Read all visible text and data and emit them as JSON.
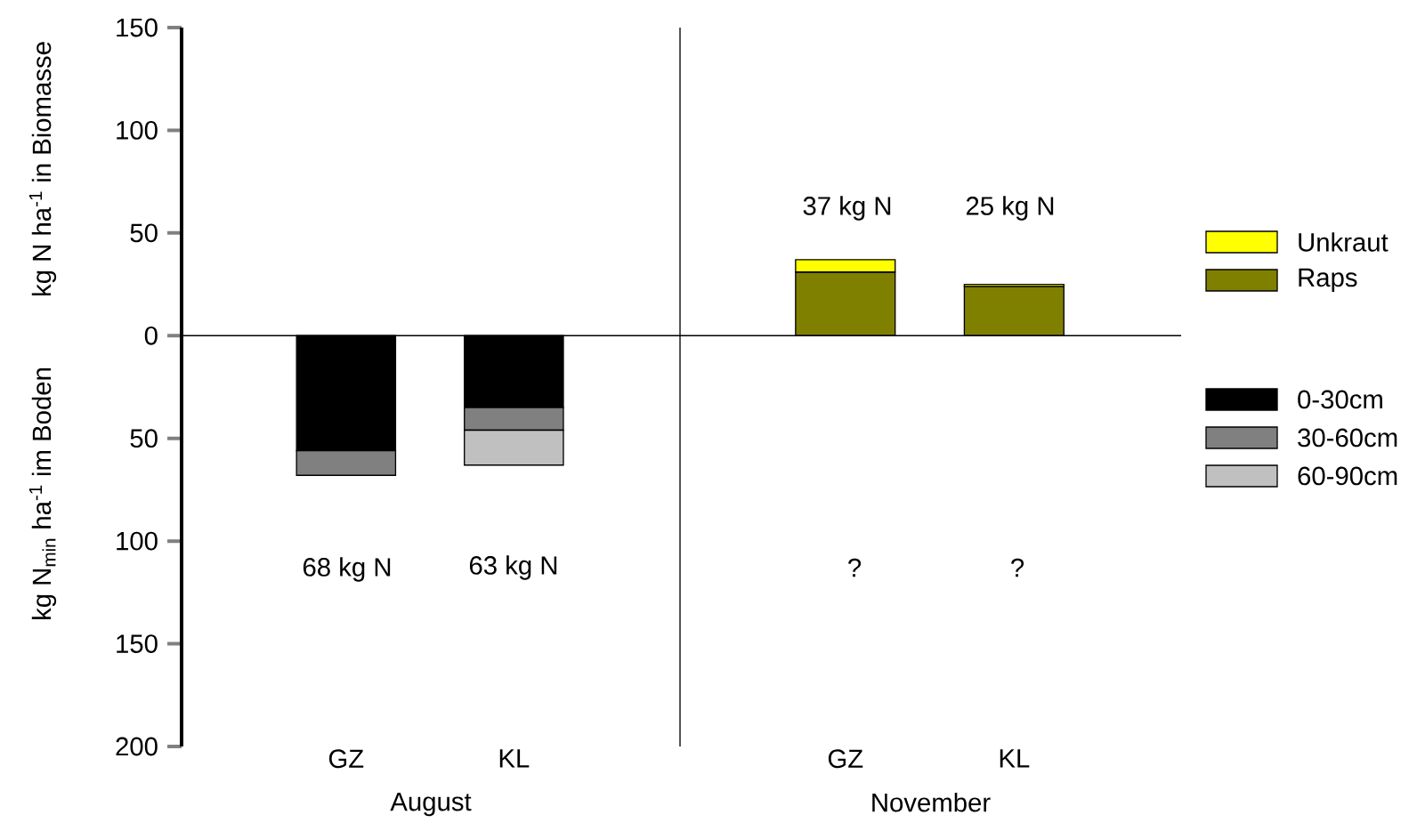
{
  "chart_data": [
    {
      "type": "bar",
      "stacked": true,
      "categories": [
        "GZ",
        "KL"
      ],
      "xlabel": "August",
      "ylabel": "kg N ha$^{-1}$ in Biomasse",
      "ylim": [
        -200,
        150
      ],
      "legend": "right",
      "yticks": [
        150,
        100,
        50,
        0,
        {
          "value": -50,
          "label": "50"
        },
        {
          "value": -100,
          "label": "100"
        },
        {
          "value": -150,
          "label": "150"
        },
        {
          "value": -200,
          "label": "200"
        }
      ],
      "series": [
        {
          "name": "0-30cm",
          "color": "#000000",
          "values": [
            -56,
            -35
          ]
        },
        {
          "name": "30-60cm",
          "color": "#808080",
          "values": [
            -12,
            -11
          ]
        },
        {
          "name": "60-90cm",
          "color": "#c0c0c0",
          "values": [
            null,
            -17
          ]
        }
      ],
      "annotations": [
        "kg N$_{min}$ ha$^{-1}$ im Boden",
        "68 kg N",
        "63 kg N"
      ]
    },
    {
      "type": "bar",
      "stacked": true,
      "categories": [
        "GZ",
        "KL"
      ],
      "xlabel": "November",
      "ylim": [
        -200,
        150
      ],
      "tick_labels": "x",
      "legend": "top right",
      "series": [
        {
          "name": "Raps",
          "color": "#808000",
          "values": [
            31,
            24
          ]
        },
        {
          "name": "Unkraut",
          "color": "#ffff00",
          "values": [
            6,
            1
          ]
        }
      ],
      "annotations": [
        "37 kg N",
        "25 kg N",
        "?",
        "?"
      ]
    }
  ]
}
